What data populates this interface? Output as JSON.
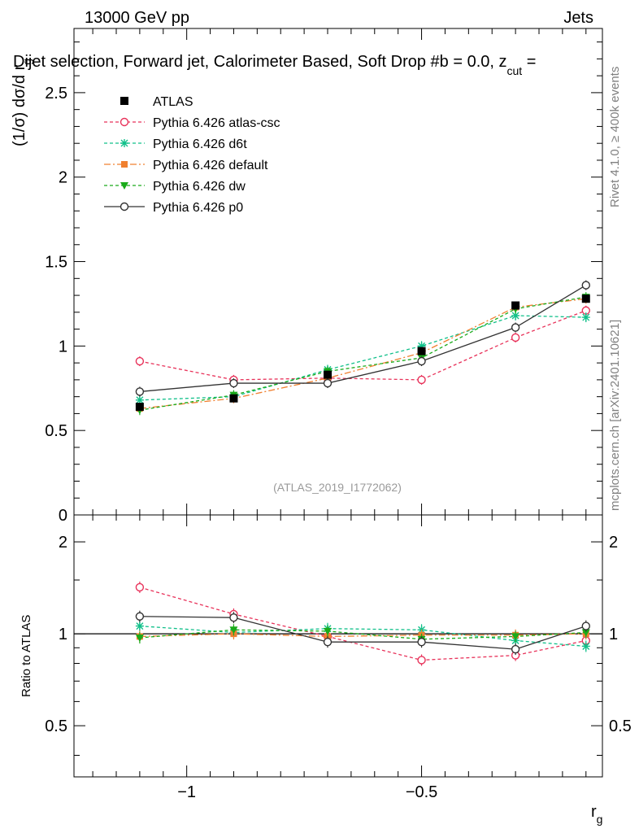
{
  "header": {
    "left": "13000 GeV pp",
    "right": "Jets"
  },
  "chart_data": [
    {
      "type": "line",
      "title": "Dijet selection, Forward jet, Calorimeter Based, Soft Drop #b = 0.0, z",
      "title_sub": "cut",
      "title_tail": " =",
      "ylabel": "(1/σ) dσ/d r",
      "ylabel_sub": "g",
      "xlabel": "r",
      "xlabel_sub": "g",
      "xlim": [
        -1.24,
        -0.115
      ],
      "ylim": [
        0,
        2.88
      ],
      "x_ticks": [
        -1,
        -0.5
      ],
      "x_tick_labels": [
        "−1",
        "−0.5"
      ],
      "y_ticks": [
        0,
        0.5,
        1,
        1.5,
        2,
        2.5
      ],
      "y_tick_labels": [
        "0",
        "0.5",
        "1",
        "1.5",
        "2",
        "2.5"
      ],
      "x": [
        -1.1,
        -0.9,
        -0.7,
        -0.5,
        -0.3,
        -0.15
      ],
      "watermark": "(ATLAS_2019_I1772062)",
      "series": [
        {
          "name": "ATLAS",
          "marker": "square",
          "color": "#000000",
          "dash": "none",
          "values": [
            0.64,
            0.69,
            0.83,
            0.97,
            1.24,
            1.28
          ]
        },
        {
          "name": "Pythia 6.426 atlas-csc",
          "marker": "open-circle",
          "color": "#e8325a",
          "dash": "4,3",
          "values": [
            0.91,
            0.8,
            0.81,
            0.8,
            1.05,
            1.21
          ]
        },
        {
          "name": "Pythia 6.426 d6t",
          "marker": "star",
          "color": "#11c08a",
          "dash": "4,3",
          "values": [
            0.68,
            0.7,
            0.86,
            1.0,
            1.18,
            1.17
          ]
        },
        {
          "name": "Pythia 6.426 default",
          "marker": "filled-square",
          "color": "#f08030",
          "dash": "8,3,2,3",
          "values": [
            0.63,
            0.69,
            0.81,
            0.96,
            1.23,
            1.28
          ]
        },
        {
          "name": "Pythia 6.426 dw",
          "marker": "triangle-down",
          "color": "#1aab1a",
          "dash": "4,3",
          "values": [
            0.62,
            0.71,
            0.85,
            0.93,
            1.22,
            1.29
          ]
        },
        {
          "name": "Pythia 6.426 p0",
          "marker": "open-circle",
          "color": "#333333",
          "dash": "none",
          "values": [
            0.73,
            0.78,
            0.78,
            0.91,
            1.11,
            1.36
          ]
        }
      ]
    },
    {
      "type": "line",
      "title": "",
      "ylabel": "Ratio to ATLAS",
      "ylim": [
        0.34,
        2.45
      ],
      "y_ticks": [
        0.5,
        1,
        2
      ],
      "y_tick_labels": [
        "0.5",
        "1",
        "2"
      ],
      "x": [
        -1.1,
        -0.9,
        -0.7,
        -0.5,
        -0.3,
        -0.15
      ],
      "series": [
        {
          "name": "ATLAS",
          "values": [
            1.0,
            1.0,
            1.0,
            1.0,
            1.0,
            1.0
          ]
        },
        {
          "name": "Pythia 6.426 atlas-csc",
          "values": [
            1.42,
            1.16,
            0.98,
            0.82,
            0.85,
            0.95
          ]
        },
        {
          "name": "Pythia 6.426 d6t",
          "values": [
            1.06,
            1.01,
            1.04,
            1.03,
            0.95,
            0.91
          ]
        },
        {
          "name": "Pythia 6.426 default",
          "values": [
            0.98,
            1.0,
            0.98,
            0.99,
            0.99,
            1.0
          ]
        },
        {
          "name": "Pythia 6.426 dw",
          "values": [
            0.97,
            1.03,
            1.02,
            0.96,
            0.98,
            1.01
          ]
        },
        {
          "name": "Pythia 6.426 p0",
          "values": [
            1.14,
            1.13,
            0.94,
            0.94,
            0.89,
            1.06
          ]
        }
      ]
    }
  ],
  "side_labels": {
    "rivet": "Rivet 4.1.0, ≥ 400k events",
    "mcplots": "mcplots.cern.ch [arXiv:2401.10621]"
  }
}
